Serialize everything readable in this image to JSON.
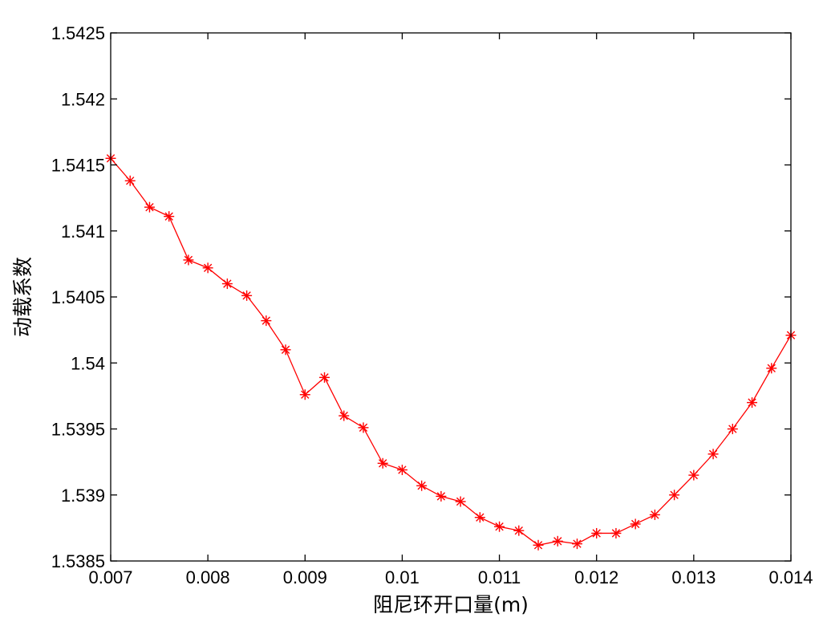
{
  "chart_data": {
    "type": "line",
    "title": "",
    "xlabel": "阻尼环开口量(m)",
    "ylabel": "动载系数",
    "xlim": [
      0.007,
      0.014
    ],
    "ylim": [
      1.5385,
      1.5425
    ],
    "grid": false,
    "legend": "none",
    "marker": "*",
    "color": "#ff0000",
    "x_ticks": [
      0.007,
      0.008,
      0.009,
      0.01,
      0.011,
      0.012,
      0.013,
      0.014
    ],
    "x_tick_labels": [
      "0.007",
      "0.008",
      "0.009",
      "0.01",
      "0.011",
      "0.012",
      "0.013",
      "0.014"
    ],
    "y_ticks": [
      1.5385,
      1.539,
      1.5395,
      1.54,
      1.5405,
      1.541,
      1.5415,
      1.542,
      1.5425
    ],
    "y_tick_labels": [
      "1.5385",
      "1.539",
      "1.5395",
      "1.54",
      "1.5405",
      "1.541",
      "1.5415",
      "1.542",
      "1.5425"
    ],
    "series": [
      {
        "x": [
          0.007,
          0.0072,
          0.0074,
          0.0076,
          0.0078,
          0.008,
          0.0082,
          0.0084,
          0.0086,
          0.0088,
          0.009,
          0.0092,
          0.0094,
          0.0096,
          0.0098,
          0.01,
          0.0102,
          0.0104,
          0.0106,
          0.0108,
          0.011,
          0.0112,
          0.0114,
          0.0116,
          0.0118,
          0.012,
          0.0122,
          0.0124,
          0.0126,
          0.0128,
          0.013,
          0.0132,
          0.0134,
          0.0136,
          0.0138,
          0.014
        ],
        "y": [
          1.54155,
          1.54138,
          1.54118,
          1.54111,
          1.54078,
          1.54072,
          1.5406,
          1.54051,
          1.54032,
          1.5401,
          1.53976,
          1.53989,
          1.5396,
          1.53951,
          1.53924,
          1.53919,
          1.53907,
          1.53899,
          1.53895,
          1.53883,
          1.53876,
          1.53873,
          1.53862,
          1.53865,
          1.53863,
          1.53871,
          1.53871,
          1.53878,
          1.53885,
          1.539,
          1.53915,
          1.53931,
          1.5395,
          1.5397,
          1.53996,
          1.54021
        ]
      }
    ]
  }
}
